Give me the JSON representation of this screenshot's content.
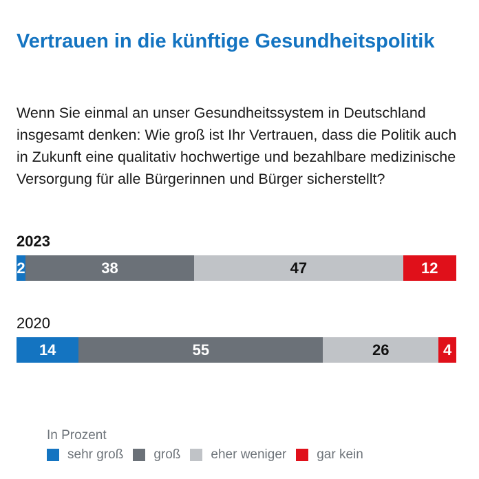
{
  "title": "Vertrauen in die künftige Gesundheitspolitik",
  "question": "Wenn Sie einmal an unser Gesundheitssystem in Deutschland insgesamt denken: Wie groß ist Ihr Vertrauen, dass die Politik auch in Zukunft eine qualitativ hochwertige und bezahlbare medizinische Versorgung für alle Bürgerinnen und Bürger sicherstellt?",
  "unit_note": "In Prozent",
  "chart_data": {
    "type": "bar",
    "orientation": "horizontal",
    "stacked": true,
    "title": "Vertrauen in die künftige Gesundheitspolitik",
    "subtitle": "Wenn Sie einmal an unser Gesundheitssystem in Deutschland insgesamt denken: Wie groß ist Ihr Vertrauen, dass die Politik auch in Zukunft eine qualitativ hochwertige und bezahlbare medizinische Versorgung für alle Bürgerinnen und Bürger sicherstellt?",
    "unit": "In Prozent",
    "categories": [
      "2023",
      "2020"
    ],
    "series": [
      {
        "name": "sehr groß",
        "color": "#1474c1",
        "values": [
          2,
          14
        ]
      },
      {
        "name": "groß",
        "color": "#6b7178",
        "values": [
          38,
          55
        ]
      },
      {
        "name": "eher weniger",
        "color": "#c0c3c7",
        "values": [
          47,
          26
        ]
      },
      {
        "name": "gar kein",
        "color": "#e0101a",
        "values": [
          12,
          4
        ]
      }
    ],
    "legend_position": "bottom-left",
    "grid": false
  }
}
